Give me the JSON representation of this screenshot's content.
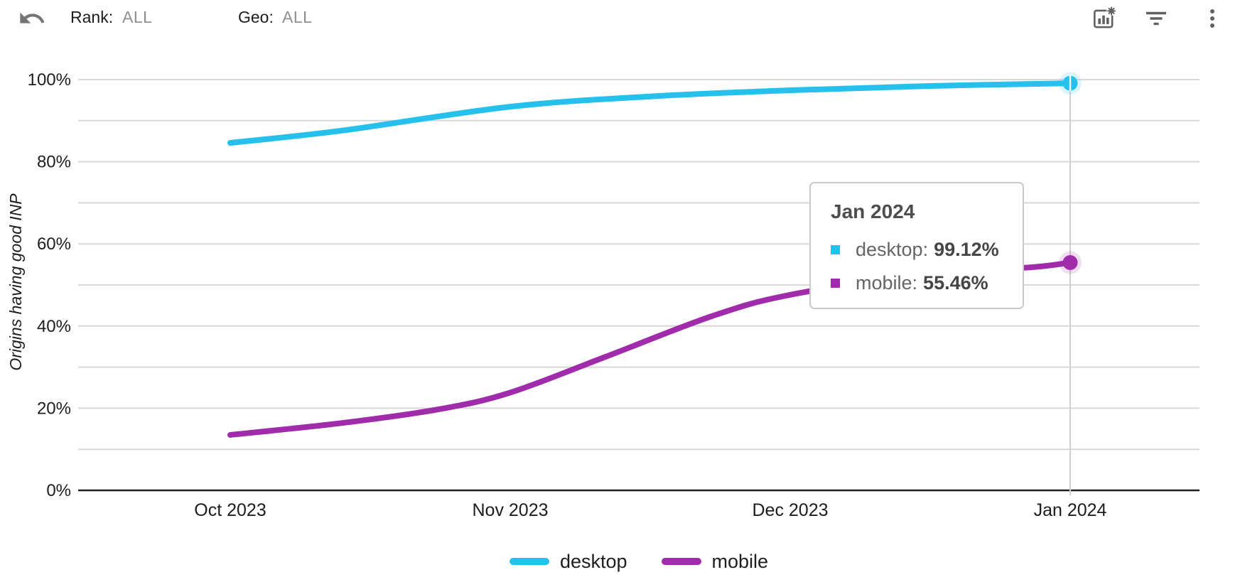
{
  "toolbar": {
    "rank_label": "Rank:",
    "rank_value": "ALL",
    "geo_label": "Geo:",
    "geo_value": "ALL",
    "icons": [
      "undo-icon",
      "chart-settings-icon",
      "filter-icon",
      "kebab-menu-icon"
    ],
    "icon_color": "#616161"
  },
  "chart_data": {
    "type": "line",
    "title": "",
    "xlabel": "",
    "ylabel": "Origins having good INP",
    "ylim": [
      0,
      100
    ],
    "grid": true,
    "grid_step": 10,
    "legend_position": "bottom",
    "categories": [
      "Oct 2023",
      "Nov 2023",
      "Dec 2023",
      "Jan 2024"
    ],
    "y_tick_labels": [
      "0%",
      "20%",
      "40%",
      "60%",
      "80%",
      "100%"
    ],
    "series": [
      {
        "name": "desktop",
        "color": "#25c1ec",
        "values": [
          84.6,
          93.4,
          97.4,
          99.12
        ],
        "waypoints": [
          [
            0,
            84.6
          ],
          [
            0.4,
            87.6
          ],
          [
            1,
            93.4
          ],
          [
            1.5,
            95.9
          ],
          [
            2,
            97.4
          ],
          [
            2.5,
            98.45
          ],
          [
            3,
            99.12
          ]
        ]
      },
      {
        "name": "mobile",
        "color": "#a02cab",
        "values": [
          13.5,
          23.8,
          47.6,
          55.46
        ],
        "waypoints": [
          [
            0,
            13.5
          ],
          [
            0.4,
            16.4
          ],
          [
            0.75,
            19.8
          ],
          [
            1,
            23.8
          ],
          [
            1.34,
            32.5
          ],
          [
            1.72,
            42.4
          ],
          [
            2,
            47.6
          ],
          [
            2.5,
            52.8
          ],
          [
            2.86,
            54.3
          ],
          [
            3,
            55.46
          ]
        ]
      }
    ],
    "highlight_category_index": 3,
    "axis_color": "#1f1f1f",
    "gridline_color": "#d8d8d8",
    "crosshair_color": "#cfcfcf"
  },
  "tooltip": {
    "title": "Jan 2024",
    "rows": [
      {
        "label": "desktop:",
        "value": "99.12%",
        "color": "#25c1ec"
      },
      {
        "label": "mobile:",
        "value": "55.46%",
        "color": "#a02cab"
      }
    ]
  }
}
